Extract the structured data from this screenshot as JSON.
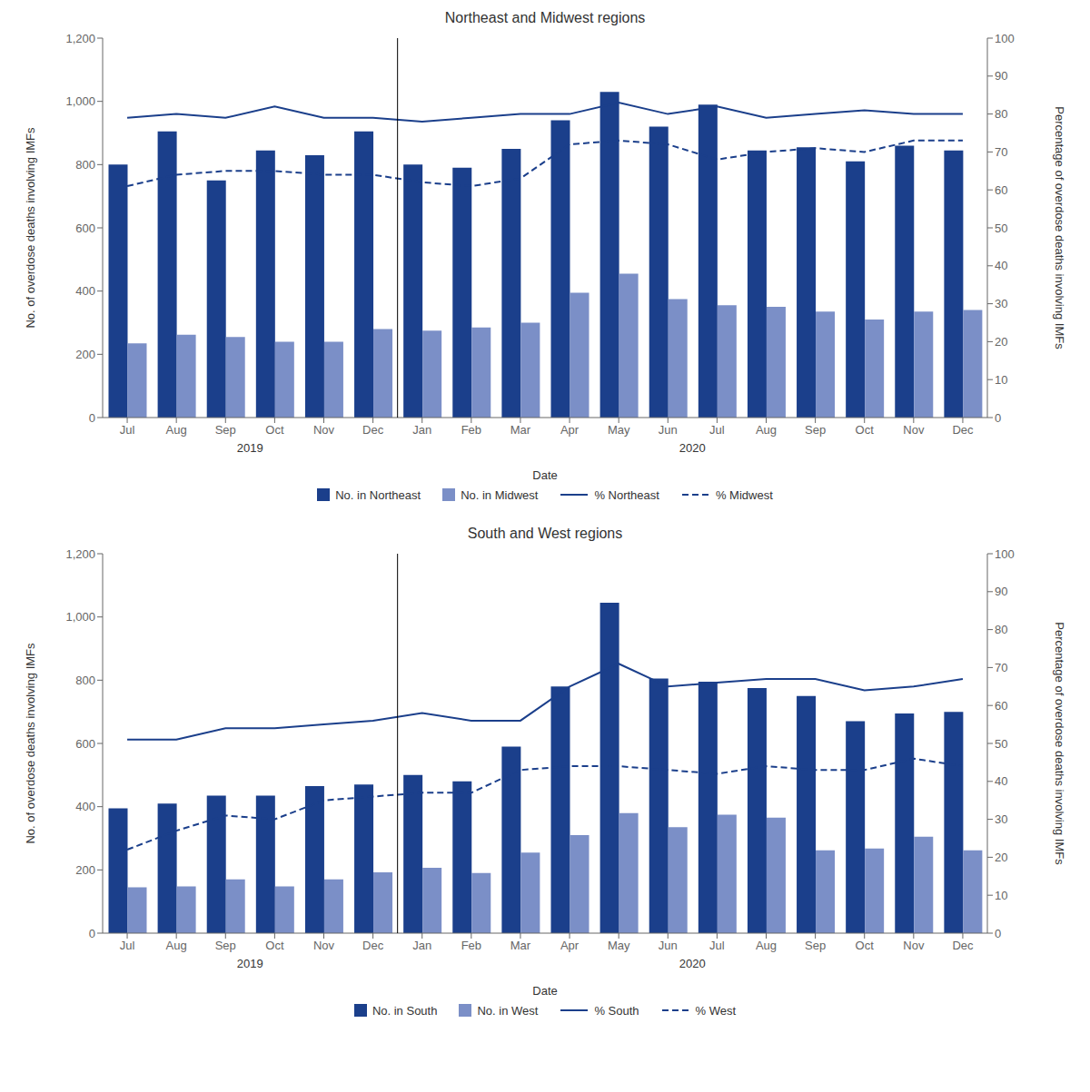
{
  "chart_data": [
    {
      "type": "bar",
      "title": "Northeast and Midwest regions",
      "x_label": "Date",
      "y_label": "No. of overdose deaths involving IMFs",
      "y2_label": "Percentage of overdose deaths involving IMFs",
      "categories": [
        "Jul",
        "Aug",
        "Sep",
        "Oct",
        "Nov",
        "Dec",
        "Jan",
        "Feb",
        "Mar",
        "Apr",
        "May",
        "Jun",
        "Jul",
        "Aug",
        "Sep",
        "Oct",
        "Nov",
        "Dec"
      ],
      "annotations": [
        {
          "text": "2019",
          "span": 6
        },
        {
          "text": "2020",
          "span": 12
        }
      ],
      "series": [
        {
          "name": "No. in Northeast",
          "type": "bar",
          "color": "#1b3f8b",
          "values": [
            800,
            905,
            750,
            845,
            830,
            905,
            800,
            790,
            850,
            940,
            1030,
            920,
            990,
            845,
            855,
            810,
            860,
            845
          ]
        },
        {
          "name": "No. in Midwest",
          "type": "bar",
          "color": "#7b8fc7",
          "values": [
            235,
            262,
            255,
            240,
            240,
            280,
            275,
            285,
            300,
            395,
            455,
            375,
            355,
            350,
            335,
            310,
            335,
            340
          ]
        },
        {
          "name": "% Northeast",
          "type": "line",
          "axis": "y2",
          "color": "#1b3f8b",
          "line_style": "solid",
          "values": [
            79,
            80,
            79,
            82,
            79,
            79,
            78,
            79,
            80,
            80,
            83,
            80,
            82,
            79,
            80,
            81,
            80,
            80
          ]
        },
        {
          "name": "% Midwest",
          "type": "line",
          "axis": "y2",
          "color": "#1b3f8b",
          "line_style": "dashed",
          "values": [
            61,
            64,
            65,
            65,
            64,
            64,
            62,
            61,
            63,
            72,
            73,
            72,
            68,
            70,
            71,
            70,
            73,
            73
          ]
        }
      ],
      "ylim": [
        0,
        1200
      ],
      "yticks": [
        0,
        200,
        400,
        600,
        800,
        {
          "value": 1000,
          "label": "1,000"
        },
        {
          "value": 1200,
          "label": "1,200"
        }
      ],
      "y2lim": [
        0,
        100
      ],
      "y2ticks": [
        0,
        10,
        20,
        30,
        40,
        50,
        60,
        70,
        80,
        90,
        100
      ],
      "grid": false,
      "legend": "bottom"
    },
    {
      "type": "bar",
      "title": "South and West regions",
      "x_label": "Date",
      "y_label": "No. of overdose deaths involving IMFs",
      "y2_label": "Percentage of overdose deaths involving IMFs",
      "categories": [
        "Jul",
        "Aug",
        "Sep",
        "Oct",
        "Nov",
        "Dec",
        "Jan",
        "Feb",
        "Mar",
        "Apr",
        "May",
        "Jun",
        "Jul",
        "Aug",
        "Sep",
        "Oct",
        "Nov",
        "Dec"
      ],
      "annotations": [
        {
          "text": "2019",
          "span": 6
        },
        {
          "text": "2020",
          "span": 12
        }
      ],
      "series": [
        {
          "name": "No. in South",
          "type": "bar",
          "color": "#1b3f8b",
          "values": [
            395,
            410,
            435,
            435,
            465,
            470,
            500,
            480,
            590,
            780,
            1045,
            805,
            795,
            775,
            750,
            670,
            695,
            700
          ]
        },
        {
          "name": "No. in West",
          "type": "bar",
          "color": "#7b8fc7",
          "values": [
            145,
            148,
            170,
            148,
            170,
            192,
            207,
            190,
            255,
            310,
            380,
            335,
            375,
            365,
            262,
            268,
            305,
            262
          ]
        },
        {
          "name": "% South",
          "type": "line",
          "axis": "y2",
          "color": "#1b3f8b",
          "line_style": "solid",
          "values": [
            51,
            51,
            54,
            54,
            55,
            56,
            58,
            56,
            56,
            65,
            71,
            65,
            66,
            67,
            67,
            64,
            65,
            67
          ]
        },
        {
          "name": "% West",
          "type": "line",
          "axis": "y2",
          "color": "#1b3f8b",
          "line_style": "dashed",
          "values": [
            22,
            27,
            31,
            30,
            35,
            36,
            37,
            37,
            43,
            44,
            44,
            43,
            42,
            44,
            43,
            43,
            46,
            44
          ]
        }
      ],
      "ylim": [
        0,
        1200
      ],
      "yticks": [
        0,
        200,
        400,
        600,
        800,
        {
          "value": 1000,
          "label": "1,000"
        },
        {
          "value": 1200,
          "label": "1,200"
        }
      ],
      "y2lim": [
        0,
        100
      ],
      "y2ticks": [
        0,
        10,
        20,
        30,
        40,
        50,
        60,
        70,
        80,
        90,
        100
      ],
      "grid": false,
      "legend": "bottom"
    }
  ]
}
